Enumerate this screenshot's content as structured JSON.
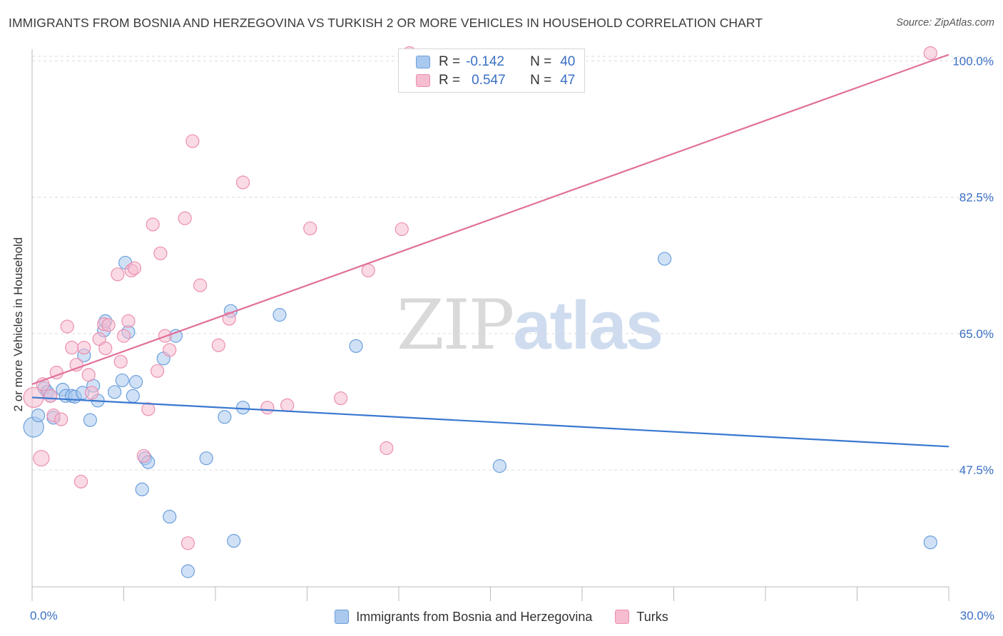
{
  "title": "IMMIGRANTS FROM BOSNIA AND HERZEGOVINA VS TURKISH 2 OR MORE VEHICLES IN HOUSEHOLD CORRELATION CHART",
  "source": "Source: ZipAtlas.com",
  "watermark": {
    "zip": "ZIP",
    "atlas": "atlas"
  },
  "legend": {
    "rows": [
      {
        "r_label": "R =",
        "r_value": "-0.142",
        "n_label": "N =",
        "n_value": "40"
      },
      {
        "r_label": "R =",
        "r_value": "0.547",
        "n_label": "N =",
        "n_value": "47"
      }
    ]
  },
  "colors": {
    "series1_fill": "#aac9ee",
    "series1_stroke": "#6b9fdc",
    "series1_line": "#3a78d0",
    "series2_fill": "#f6bcd0",
    "series2_stroke": "#ec8fb0",
    "series2_line": "#e0709a",
    "axis_label": "#3a6fc4",
    "grid": "#dcdcdc"
  },
  "chart_data": {
    "type": "scatter",
    "title": "IMMIGRANTS FROM BOSNIA AND HERZEGOVINA VS TURKISH 2 OR MORE VEHICLES IN HOUSEHOLD CORRELATION CHART",
    "xlabel": "",
    "ylabel": "2 or more Vehicles in Household",
    "xlim": [
      0,
      30
    ],
    "ylim": [
      32.5,
      101.5
    ],
    "x_tick_labels": [
      "0.0%",
      "30.0%"
    ],
    "y_ticks": [
      47.5,
      65.0,
      82.5,
      100.0
    ],
    "y_tick_labels": [
      "47.5%",
      "65.0%",
      "82.5%",
      "100.0%"
    ],
    "grid": true,
    "legend_position": "top-center",
    "series": [
      {
        "name": "Immigrants from Bosnia and Herzegovina",
        "r": -0.142,
        "n": 40,
        "trend": {
          "x": [
            0,
            30
          ],
          "y": [
            56.8,
            50.5
          ]
        },
        "points": [
          [
            0.05,
            53.0,
            14
          ],
          [
            0.2,
            54.5,
            9
          ],
          [
            0.4,
            58.0,
            9
          ],
          [
            0.5,
            57.5,
            9
          ],
          [
            0.6,
            57.0,
            9
          ],
          [
            0.7,
            54.2,
            9
          ],
          [
            1.0,
            57.8,
            9
          ],
          [
            1.1,
            57.0,
            9
          ],
          [
            1.3,
            57.0,
            9
          ],
          [
            1.4,
            56.9,
            9
          ],
          [
            1.65,
            57.4,
            9
          ],
          [
            1.7,
            62.2,
            9
          ],
          [
            1.9,
            53.9,
            9
          ],
          [
            2.0,
            58.3,
            9
          ],
          [
            2.15,
            56.4,
            9
          ],
          [
            2.35,
            65.4,
            9
          ],
          [
            2.4,
            66.6,
            9
          ],
          [
            2.7,
            57.5,
            9
          ],
          [
            2.95,
            59.0,
            9
          ],
          [
            3.05,
            74.1,
            9
          ],
          [
            3.15,
            65.2,
            9
          ],
          [
            3.3,
            57.0,
            9
          ],
          [
            3.4,
            58.8,
            9
          ],
          [
            3.7,
            49.0,
            9
          ],
          [
            3.8,
            48.5,
            9
          ],
          [
            3.6,
            45.0,
            9
          ],
          [
            4.3,
            61.8,
            9
          ],
          [
            4.5,
            41.5,
            9
          ],
          [
            4.7,
            64.7,
            9
          ],
          [
            5.1,
            34.5,
            9
          ],
          [
            5.7,
            49.0,
            9
          ],
          [
            6.3,
            54.3,
            9
          ],
          [
            6.5,
            67.9,
            9
          ],
          [
            6.6,
            38.4,
            9
          ],
          [
            6.9,
            55.5,
            9
          ],
          [
            8.1,
            67.4,
            9
          ],
          [
            10.6,
            63.4,
            9
          ],
          [
            15.3,
            48.0,
            9
          ],
          [
            20.7,
            74.6,
            9
          ],
          [
            29.4,
            38.2,
            9
          ]
        ]
      },
      {
        "name": "Turks",
        "r": 0.547,
        "n": 47,
        "trend": {
          "x": [
            0,
            30
          ],
          "y": [
            58.5,
            100.8
          ]
        },
        "points": [
          [
            0.05,
            56.8,
            14
          ],
          [
            0.3,
            49.0,
            11
          ],
          [
            0.35,
            58.5,
            9
          ],
          [
            0.6,
            57.0,
            9
          ],
          [
            0.7,
            54.5,
            9
          ],
          [
            0.8,
            60.0,
            9
          ],
          [
            0.95,
            54.0,
            9
          ],
          [
            1.15,
            65.9,
            9
          ],
          [
            1.3,
            63.2,
            9
          ],
          [
            1.45,
            61.0,
            9
          ],
          [
            1.6,
            46.0,
            9
          ],
          [
            1.7,
            63.2,
            9
          ],
          [
            1.85,
            59.7,
            9
          ],
          [
            1.95,
            57.4,
            9
          ],
          [
            2.2,
            64.3,
            9
          ],
          [
            2.35,
            66.2,
            9
          ],
          [
            2.4,
            63.1,
            9
          ],
          [
            2.5,
            66.1,
            9
          ],
          [
            2.8,
            72.6,
            9
          ],
          [
            2.9,
            61.4,
            9
          ],
          [
            3.0,
            64.7,
            9
          ],
          [
            3.15,
            66.6,
            9
          ],
          [
            3.25,
            73.1,
            9
          ],
          [
            3.35,
            73.4,
            9
          ],
          [
            3.65,
            49.3,
            9
          ],
          [
            3.8,
            55.3,
            9
          ],
          [
            3.95,
            79.0,
            9
          ],
          [
            4.1,
            60.2,
            9
          ],
          [
            4.2,
            75.3,
            9
          ],
          [
            4.35,
            64.7,
            9
          ],
          [
            4.5,
            62.9,
            9
          ],
          [
            5.0,
            79.8,
            9
          ],
          [
            5.1,
            38.1,
            9
          ],
          [
            5.25,
            89.7,
            9
          ],
          [
            5.5,
            71.2,
            9
          ],
          [
            6.1,
            63.5,
            9
          ],
          [
            6.45,
            66.9,
            9
          ],
          [
            6.9,
            84.4,
            9
          ],
          [
            7.7,
            55.5,
            9
          ],
          [
            8.35,
            55.8,
            9
          ],
          [
            9.1,
            78.5,
            9
          ],
          [
            10.1,
            56.7,
            9
          ],
          [
            11.0,
            73.1,
            9
          ],
          [
            11.6,
            50.3,
            9
          ],
          [
            12.1,
            78.4,
            9
          ],
          [
            12.35,
            101.0,
            9
          ],
          [
            29.4,
            101.0,
            9
          ]
        ]
      }
    ]
  }
}
